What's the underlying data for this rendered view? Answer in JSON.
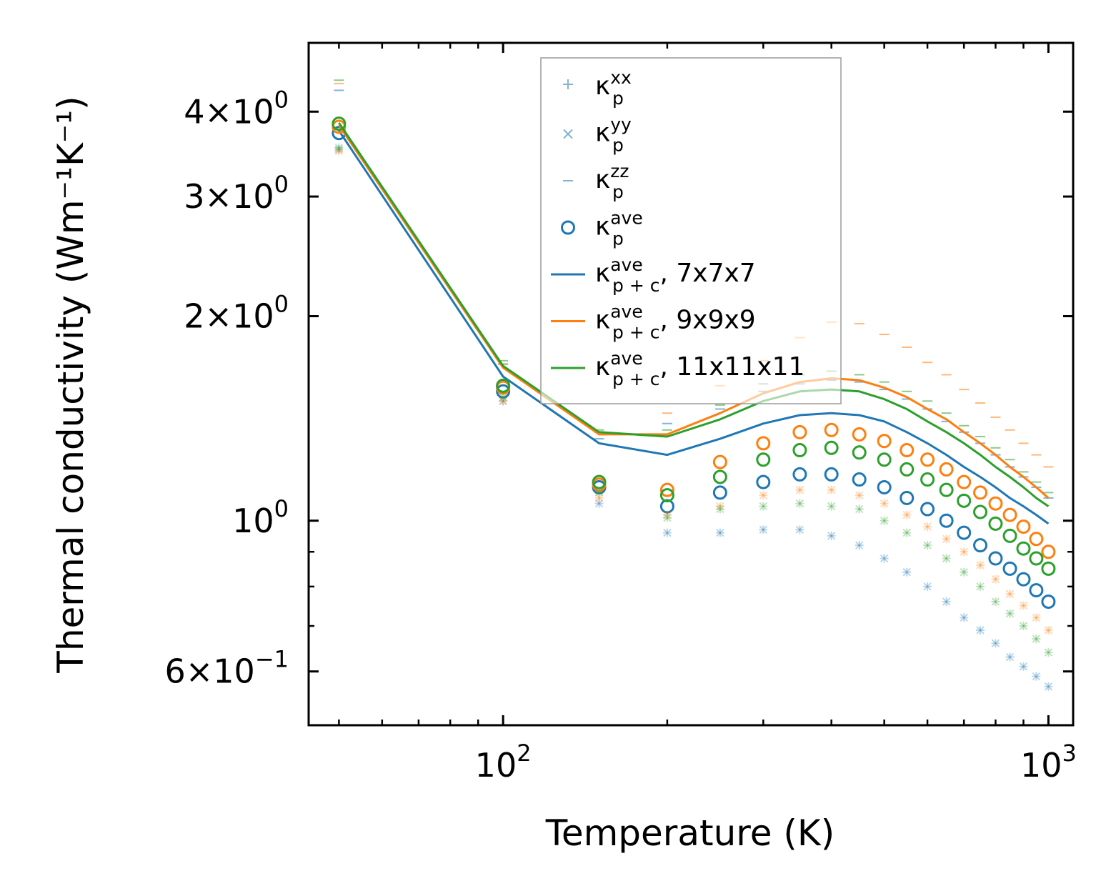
{
  "chart_data": {
    "type": "scatter",
    "title": "",
    "xlabel": "Temperature (K)",
    "ylabel": "Thermal conductivity (Wm⁻¹K⁻¹)",
    "xscale": "log",
    "yscale": "log",
    "xlim": [
      44,
      1110
    ],
    "ylim": [
      0.5,
      5.05
    ],
    "x_ticks": [
      {
        "value": 100,
        "base": "10",
        "exp": "2"
      },
      {
        "value": 1000,
        "base": "10",
        "exp": "3"
      }
    ],
    "y_ticks": [
      {
        "value": 0.6,
        "mant": "6",
        "exp": "−1"
      },
      {
        "value": 1,
        "mant": "",
        "exp": "0"
      },
      {
        "value": 2,
        "mant": "2",
        "exp": "0"
      },
      {
        "value": 3,
        "mant": "3",
        "exp": "0"
      },
      {
        "value": 4,
        "mant": "4",
        "exp": "0"
      }
    ],
    "x": [
      50,
      100,
      150,
      200,
      250,
      300,
      350,
      400,
      450,
      500,
      550,
      600,
      650,
      700,
      750,
      800,
      850,
      900,
      950,
      1000
    ],
    "grid": false,
    "legend_position": "top-center",
    "legend": [
      {
        "label": "κ",
        "sub": "p",
        "sup": "xx",
        "suffix": "",
        "marker": "plus"
      },
      {
        "label": "κ",
        "sub": "p",
        "sup": "yy",
        "suffix": "",
        "marker": "x"
      },
      {
        "label": "κ",
        "sub": "p",
        "sup": "zz",
        "suffix": "",
        "marker": "dash"
      },
      {
        "label": "κ",
        "sub": "p",
        "sup": "ave",
        "suffix": "",
        "marker": "circle"
      },
      {
        "label": "κ",
        "sub": "p + c",
        "sup": "ave",
        "suffix": ", 7x7x7",
        "marker": "line",
        "color": "#1f77b4"
      },
      {
        "label": "κ",
        "sub": "p + c",
        "sup": "ave",
        "suffix": ", 9x9x9",
        "marker": "line",
        "color": "#ff7f0e"
      },
      {
        "label": "κ",
        "sub": "p + c",
        "sup": "ave",
        "suffix": ", 11x11x11",
        "marker": "line",
        "color": "#2ca02c"
      }
    ],
    "series": [
      {
        "name": "7x7x7",
        "color": "#1f77b4",
        "kp_xx": [
          3.52,
          1.5,
          1.06,
          0.96,
          0.96,
          0.97,
          0.97,
          0.95,
          0.92,
          0.88,
          0.84,
          0.8,
          0.76,
          0.72,
          0.69,
          0.66,
          0.63,
          0.61,
          0.59,
          0.57
        ],
        "kp_yy": [
          3.52,
          1.5,
          1.06,
          0.96,
          0.96,
          0.97,
          0.97,
          0.95,
          0.92,
          0.88,
          0.84,
          0.8,
          0.76,
          0.72,
          0.69,
          0.66,
          0.63,
          0.61,
          0.59,
          0.57
        ],
        "kp_zz": [
          4.3,
          1.7,
          1.32,
          1.39,
          1.46,
          1.55,
          1.59,
          1.61,
          1.6,
          1.56,
          1.51,
          1.46,
          1.4,
          1.35,
          1.3,
          1.25,
          1.2,
          1.16,
          1.12,
          1.08
        ],
        "kp_ave": [
          3.72,
          1.55,
          1.12,
          1.05,
          1.1,
          1.14,
          1.17,
          1.17,
          1.15,
          1.12,
          1.08,
          1.04,
          1.0,
          0.96,
          0.92,
          0.88,
          0.85,
          0.82,
          0.79,
          0.76
        ],
        "kpc_ave": [
          3.75,
          1.63,
          1.3,
          1.25,
          1.32,
          1.39,
          1.43,
          1.44,
          1.43,
          1.4,
          1.35,
          1.3,
          1.25,
          1.2,
          1.16,
          1.12,
          1.08,
          1.05,
          1.02,
          0.99
        ]
      },
      {
        "name": "9x9x9",
        "color": "#ff7f0e",
        "kp_xx": [
          3.5,
          1.5,
          1.08,
          1.02,
          1.05,
          1.09,
          1.11,
          1.11,
          1.09,
          1.06,
          1.02,
          0.98,
          0.94,
          0.9,
          0.86,
          0.82,
          0.78,
          0.75,
          0.72,
          0.69
        ],
        "kp_yy": [
          3.5,
          1.5,
          1.08,
          1.02,
          1.05,
          1.09,
          1.11,
          1.11,
          1.09,
          1.06,
          1.02,
          0.98,
          0.94,
          0.9,
          0.86,
          0.82,
          0.78,
          0.75,
          0.72,
          0.69
        ],
        "kp_zz": [
          4.4,
          1.7,
          1.35,
          1.44,
          1.58,
          1.72,
          1.86,
          1.96,
          1.95,
          1.88,
          1.8,
          1.71,
          1.64,
          1.56,
          1.49,
          1.42,
          1.36,
          1.3,
          1.25,
          1.2
        ],
        "kp_ave": [
          3.8,
          1.57,
          1.13,
          1.11,
          1.22,
          1.3,
          1.35,
          1.36,
          1.34,
          1.31,
          1.27,
          1.23,
          1.19,
          1.14,
          1.1,
          1.06,
          1.02,
          0.98,
          0.94,
          0.9
        ],
        "kpc_ave": [
          3.82,
          1.68,
          1.34,
          1.34,
          1.44,
          1.54,
          1.6,
          1.62,
          1.61,
          1.57,
          1.52,
          1.46,
          1.41,
          1.35,
          1.3,
          1.25,
          1.2,
          1.16,
          1.12,
          1.08
        ]
      },
      {
        "name": "11x11x11",
        "color": "#2ca02c",
        "kp_xx": [
          3.54,
          1.52,
          1.1,
          1.01,
          1.04,
          1.05,
          1.06,
          1.05,
          1.04,
          1.0,
          0.96,
          0.92,
          0.88,
          0.84,
          0.8,
          0.76,
          0.73,
          0.7,
          0.67,
          0.64
        ],
        "kp_yy": [
          3.54,
          1.52,
          1.1,
          1.01,
          1.04,
          1.05,
          1.06,
          1.05,
          1.04,
          1.0,
          0.96,
          0.92,
          0.88,
          0.84,
          0.8,
          0.76,
          0.73,
          0.7,
          0.67,
          0.64
        ],
        "kp_zz": [
          4.45,
          1.72,
          1.36,
          1.36,
          1.48,
          1.59,
          1.64,
          1.66,
          1.64,
          1.6,
          1.55,
          1.5,
          1.44,
          1.38,
          1.33,
          1.28,
          1.23,
          1.18,
          1.14,
          1.1
        ],
        "kp_ave": [
          3.84,
          1.58,
          1.14,
          1.09,
          1.16,
          1.23,
          1.27,
          1.28,
          1.26,
          1.23,
          1.19,
          1.15,
          1.11,
          1.07,
          1.03,
          0.99,
          0.95,
          0.91,
          0.88,
          0.85
        ],
        "kpc_ave": [
          3.85,
          1.69,
          1.35,
          1.33,
          1.41,
          1.5,
          1.55,
          1.56,
          1.55,
          1.51,
          1.46,
          1.4,
          1.35,
          1.3,
          1.25,
          1.2,
          1.16,
          1.12,
          1.08,
          1.05
        ]
      }
    ]
  }
}
